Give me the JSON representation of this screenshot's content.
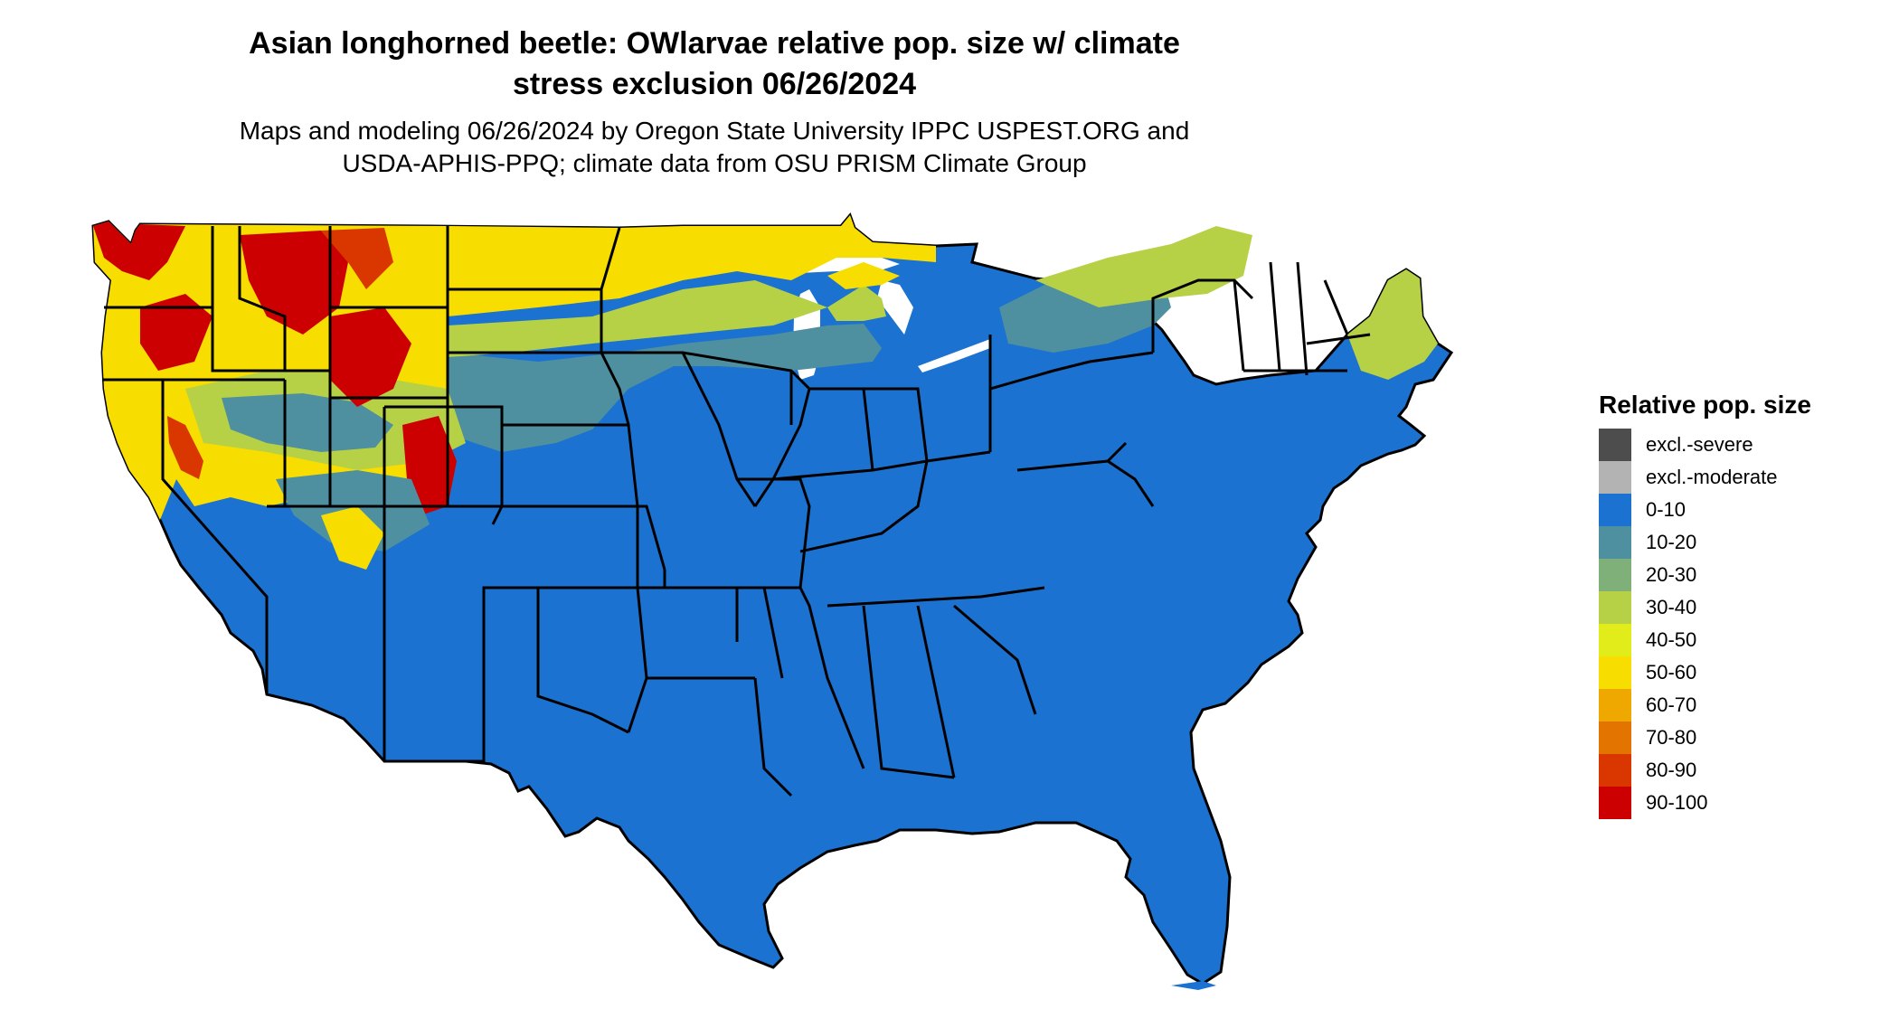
{
  "title": {
    "line1": "Asian longhorned beetle: OWlarvae relative pop. size w/ climate",
    "line2": "stress exclusion 06/26/2024"
  },
  "subtitle": {
    "line1": "Maps and modeling 06/26/2024 by Oregon State University IPPC USPEST.ORG and",
    "line2": "USDA-APHIS-PPQ; climate data from OSU PRISM Climate Group"
  },
  "legend": {
    "title": "Relative pop. size",
    "items": [
      {
        "label": "excl.-severe",
        "color": "#4d4d4d"
      },
      {
        "label": "excl.-moderate",
        "color": "#b3b3b3"
      },
      {
        "label": "0-10",
        "color": "#1b72d0"
      },
      {
        "label": "10-20",
        "color": "#4e8fa0"
      },
      {
        "label": "20-30",
        "color": "#7fb07a"
      },
      {
        "label": "30-40",
        "color": "#b6d146"
      },
      {
        "label": "40-50",
        "color": "#e2ec1a"
      },
      {
        "label": "50-60",
        "color": "#f7de00"
      },
      {
        "label": "60-70",
        "color": "#eea800"
      },
      {
        "label": "70-80",
        "color": "#e47400"
      },
      {
        "label": "80-90",
        "color": "#d93600"
      },
      {
        "label": "90-100",
        "color": "#cc0000"
      }
    ]
  }
}
